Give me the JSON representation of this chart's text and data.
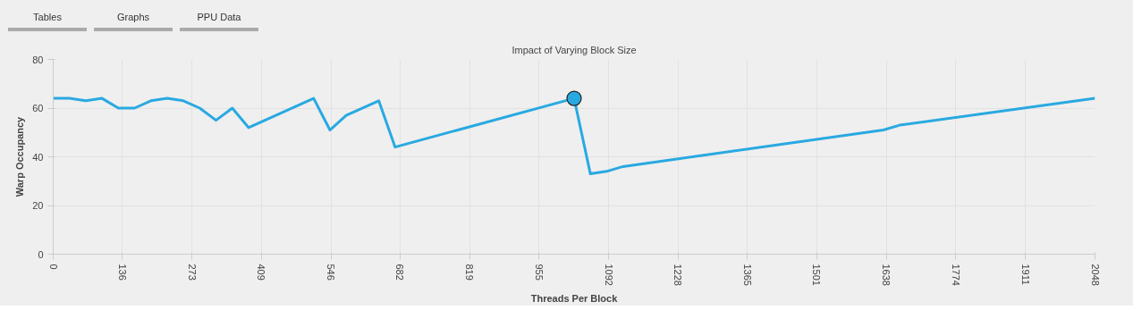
{
  "chart_data": {
    "type": "line",
    "title": "Impact of Varying Block Size",
    "xlabel": "Threads Per Block",
    "ylabel": "Warp Occupancy",
    "annotations": [
      "Tables",
      "Graphs",
      "PPU Data"
    ],
    "xlim": [
      0,
      2048
    ],
    "xticks": [
      0,
      136,
      273,
      409,
      546,
      682,
      819,
      955,
      1092,
      1228,
      1365,
      1501,
      1638,
      1774,
      1911,
      2048
    ],
    "ylim": [
      0,
      80
    ],
    "yticks": [
      0,
      20,
      40,
      60,
      80
    ],
    "grid": true,
    "line_style": "solid",
    "series": [
      {
        "color": "#29a9e1",
        "x": [
          0,
          32,
          64,
          96,
          128,
          160,
          192,
          224,
          256,
          288,
          320,
          352,
          384,
          512,
          544,
          576,
          640,
          672,
          1024,
          1056,
          1088,
          1120,
          1632,
          1664,
          2048
        ],
        "values": [
          64,
          64,
          63,
          64,
          60,
          60,
          63,
          64,
          63,
          60,
          55,
          60,
          52,
          64,
          51,
          57,
          63,
          44,
          64,
          33,
          34,
          36,
          51,
          53,
          64
        ]
      },
      {
        "type": "scatter",
        "color": "#29a9e1",
        "x": [
          1024
        ],
        "values": [
          64
        ]
      }
    ]
  }
}
